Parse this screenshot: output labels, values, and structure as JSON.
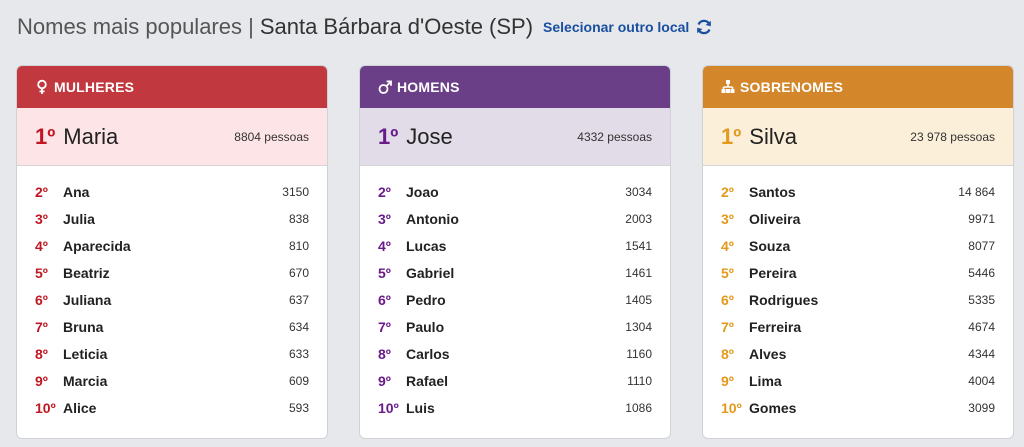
{
  "header": {
    "title": "Nomes mais populares |",
    "place": "Santa Bárbara d'Oeste (SP)",
    "change_link": "Selecionar outro local"
  },
  "colors": {
    "women": "#c1393e",
    "men": "#6a3f87",
    "surnames": "#d3862a",
    "link": "#1a4fa0"
  },
  "cards": [
    {
      "key": "women",
      "icon": "female-icon",
      "title": "MULHERES",
      "top": {
        "rank": "1º",
        "name": "Maria",
        "count": "8804 pessoas"
      },
      "items": [
        {
          "rank": "2º",
          "name": "Ana",
          "count": "3150"
        },
        {
          "rank": "3º",
          "name": "Julia",
          "count": "838"
        },
        {
          "rank": "4º",
          "name": "Aparecida",
          "count": "810"
        },
        {
          "rank": "5º",
          "name": "Beatriz",
          "count": "670"
        },
        {
          "rank": "6º",
          "name": "Juliana",
          "count": "637"
        },
        {
          "rank": "7º",
          "name": "Bruna",
          "count": "634"
        },
        {
          "rank": "8º",
          "name": "Leticia",
          "count": "633"
        },
        {
          "rank": "9º",
          "name": "Marcia",
          "count": "609"
        },
        {
          "rank": "10º",
          "name": "Alice",
          "count": "593"
        }
      ]
    },
    {
      "key": "men",
      "icon": "male-icon",
      "title": "HOMENS",
      "top": {
        "rank": "1º",
        "name": "Jose",
        "count": "4332 pessoas"
      },
      "items": [
        {
          "rank": "2º",
          "name": "Joao",
          "count": "3034"
        },
        {
          "rank": "3º",
          "name": "Antonio",
          "count": "2003"
        },
        {
          "rank": "4º",
          "name": "Lucas",
          "count": "1541"
        },
        {
          "rank": "5º",
          "name": "Gabriel",
          "count": "1461"
        },
        {
          "rank": "6º",
          "name": "Pedro",
          "count": "1405"
        },
        {
          "rank": "7º",
          "name": "Paulo",
          "count": "1304"
        },
        {
          "rank": "8º",
          "name": "Carlos",
          "count": "1160"
        },
        {
          "rank": "9º",
          "name": "Rafael",
          "count": "1110"
        },
        {
          "rank": "10º",
          "name": "Luis",
          "count": "1086"
        }
      ]
    },
    {
      "key": "surnames",
      "icon": "family-tree-icon",
      "title": "SOBRENOMES",
      "top": {
        "rank": "1º",
        "name": "Silva",
        "count": "23 978 pessoas"
      },
      "items": [
        {
          "rank": "2º",
          "name": "Santos",
          "count": "14 864"
        },
        {
          "rank": "3º",
          "name": "Oliveira",
          "count": "9971"
        },
        {
          "rank": "4º",
          "name": "Souza",
          "count": "8077"
        },
        {
          "rank": "5º",
          "name": "Pereira",
          "count": "5446"
        },
        {
          "rank": "6º",
          "name": "Rodrigues",
          "count": "5335"
        },
        {
          "rank": "7º",
          "name": "Ferreira",
          "count": "4674"
        },
        {
          "rank": "8º",
          "name": "Alves",
          "count": "4344"
        },
        {
          "rank": "9º",
          "name": "Lima",
          "count": "4004"
        },
        {
          "rank": "10º",
          "name": "Gomes",
          "count": "3099"
        }
      ]
    }
  ]
}
